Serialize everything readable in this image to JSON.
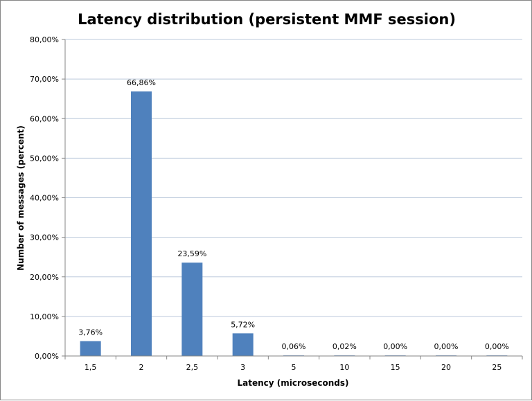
{
  "chart_data": {
    "type": "bar",
    "title": "Latency distribution (persistent MMF session)",
    "xlabel": "Latency (microseconds)",
    "ylabel": "Number of messages (percent)",
    "categories": [
      "1,5",
      "2",
      "2,5",
      "3",
      "5",
      "10",
      "15",
      "20",
      "25"
    ],
    "values": [
      3.76,
      66.86,
      23.59,
      5.72,
      0.06,
      0.02,
      0.0,
      0.0,
      0.0
    ],
    "data_labels": [
      "3,76%",
      "66,86%",
      "23,59%",
      "5,72%",
      "0,06%",
      "0,02%",
      "0,00%",
      "0,00%",
      "0,00%"
    ],
    "ylim": [
      0,
      80
    ],
    "yticks": [
      0,
      10,
      20,
      30,
      40,
      50,
      60,
      70,
      80
    ],
    "ytick_labels": [
      "0,00%",
      "10,00%",
      "20,00%",
      "30,00%",
      "40,00%",
      "50,00%",
      "60,00%",
      "70,00%",
      "80,00%"
    ],
    "grid": true,
    "legend": "none",
    "bar_color": "#4F81BD",
    "grid_color": "#BBC9DB"
  }
}
